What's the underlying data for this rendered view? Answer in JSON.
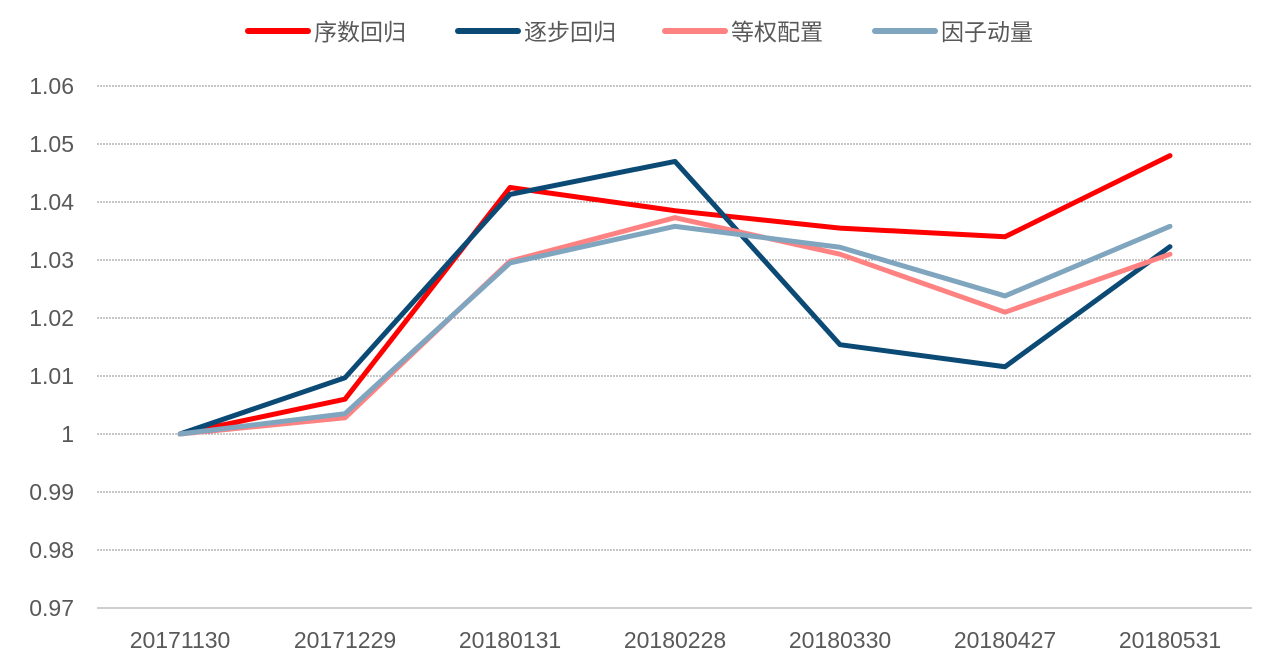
{
  "chart_data": {
    "type": "line",
    "title": "",
    "xlabel": "",
    "ylabel": "",
    "categories": [
      "20171130",
      "20171229",
      "20180131",
      "20180228",
      "20180330",
      "20180427",
      "20180531"
    ],
    "ylim": [
      0.97,
      1.06
    ],
    "yticks": [
      "0.97",
      "0.98",
      "0.99",
      "1",
      "1.01",
      "1.02",
      "1.03",
      "1.04",
      "1.05",
      "1.06"
    ],
    "grid": true,
    "legend": "top-center",
    "series": [
      {
        "name": "序数回归",
        "color": "#ff0000",
        "values": [
          1.0,
          1.006,
          1.0425,
          1.0385,
          1.0355,
          1.034,
          1.048
        ]
      },
      {
        "name": "逐步回归",
        "color": "#0b4a75",
        "values": [
          1.0,
          1.0097,
          1.0413,
          1.047,
          1.0154,
          1.0116,
          1.0323
        ]
      },
      {
        "name": "等权配置",
        "color": "#ff8282",
        "values": [
          1.0,
          1.0028,
          1.0298,
          1.0373,
          1.031,
          1.021,
          1.031
        ]
      },
      {
        "name": "因子动量",
        "color": "#80a5bf",
        "values": [
          1.0,
          1.0035,
          1.0295,
          1.0358,
          1.0322,
          1.0238,
          1.0358
        ]
      }
    ]
  }
}
